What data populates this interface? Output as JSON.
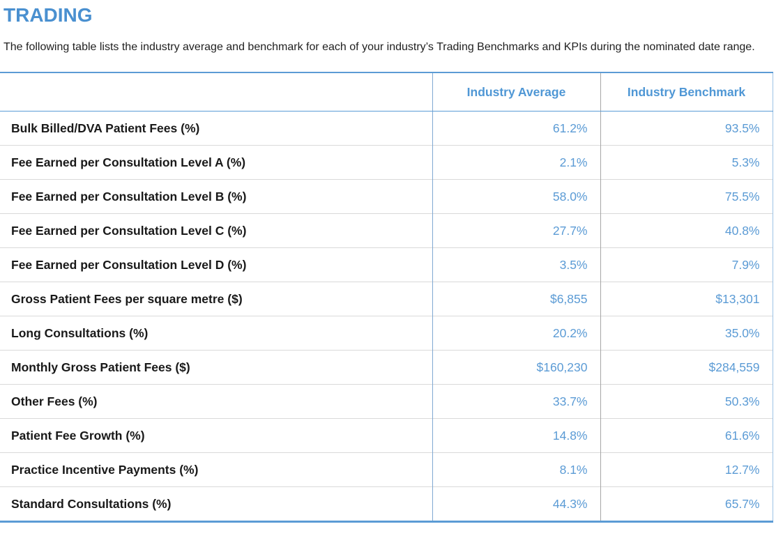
{
  "page": {
    "title": "TRADING",
    "description": "The following table lists the industry average and benchmark for each of your industry’s Trading Benchmarks and KPIs during the nominated date range."
  },
  "colors": {
    "title_blue": "#4a90d0",
    "value_blue": "#5b9bd5",
    "table_border_blue": "#5b9bd5",
    "label_divider_blue": "#7fa8d2",
    "value_divider_gray": "#a6a6a6",
    "right_edge_light_blue": "#9cc2e5",
    "row_divider_gray": "#d9d9d9",
    "label_text": "#191919"
  },
  "table": {
    "columns": [
      "Industry Average",
      "Industry Benchmark"
    ],
    "rows": [
      {
        "label": "Bulk Billed/DVA Patient Fees (%)",
        "average": "61.2%",
        "benchmark": "93.5%"
      },
      {
        "label": "Fee Earned per Consultation Level A (%)",
        "average": "2.1%",
        "benchmark": "5.3%"
      },
      {
        "label": "Fee Earned per Consultation Level B (%)",
        "average": "58.0%",
        "benchmark": "75.5%"
      },
      {
        "label": "Fee Earned per Consultation Level C (%)",
        "average": "27.7%",
        "benchmark": "40.8%"
      },
      {
        "label": "Fee Earned per Consultation Level D (%)",
        "average": "3.5%",
        "benchmark": "7.9%"
      },
      {
        "label": "Gross Patient Fees per square metre ($)",
        "average": "$6,855",
        "benchmark": "$13,301"
      },
      {
        "label": "Long Consultations (%)",
        "average": "20.2%",
        "benchmark": "35.0%"
      },
      {
        "label": "Monthly Gross Patient Fees ($)",
        "average": "$160,230",
        "benchmark": "$284,559"
      },
      {
        "label": "Other Fees (%)",
        "average": "33.7%",
        "benchmark": "50.3%"
      },
      {
        "label": "Patient Fee Growth (%)",
        "average": "14.8%",
        "benchmark": "61.6%"
      },
      {
        "label": "Practice Incentive Payments (%)",
        "average": "8.1%",
        "benchmark": "12.7%"
      },
      {
        "label": "Standard Consultations (%)",
        "average": "44.3%",
        "benchmark": "65.7%"
      }
    ]
  }
}
